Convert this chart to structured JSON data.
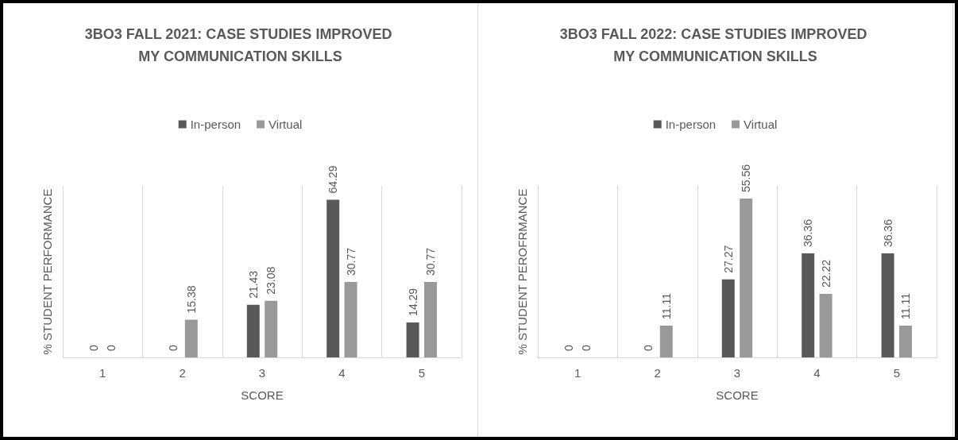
{
  "chart_data": [
    {
      "type": "bar",
      "title": "3BO3 FALL 2021: CASE STUDIES IMPROVED MY COMMUNICATION SKILLS",
      "xlabel": "SCORE",
      "ylabel": "% STUDENT PERFORMANCE",
      "categories": [
        "1",
        "2",
        "3",
        "4",
        "5"
      ],
      "series": [
        {
          "name": "In-person",
          "color": "#595959",
          "values": [
            0,
            0,
            21.43,
            64.29,
            14.29
          ]
        },
        {
          "name": "Virtual",
          "color": "#999999",
          "values": [
            0,
            15.38,
            23.08,
            30.77,
            30.77
          ]
        }
      ],
      "data_labels": true,
      "legend": "top",
      "grid": "x"
    },
    {
      "type": "bar",
      "title": "3BO3 FALL 2022: CASE STUDIES IMPROVED MY COMMUNICATION SKILLS",
      "xlabel": "SCORE",
      "ylabel": "% STUDENT PEROFRMANCE",
      "categories": [
        "1",
        "2",
        "3",
        "4",
        "5"
      ],
      "series": [
        {
          "name": "In-person",
          "color": "#595959",
          "values": [
            0,
            0,
            27.27,
            36.36,
            36.36
          ]
        },
        {
          "name": "Virtual",
          "color": "#999999",
          "values": [
            0,
            11.11,
            55.56,
            22.22,
            11.11
          ]
        }
      ],
      "data_labels": true,
      "legend": "top",
      "grid": "x"
    }
  ]
}
